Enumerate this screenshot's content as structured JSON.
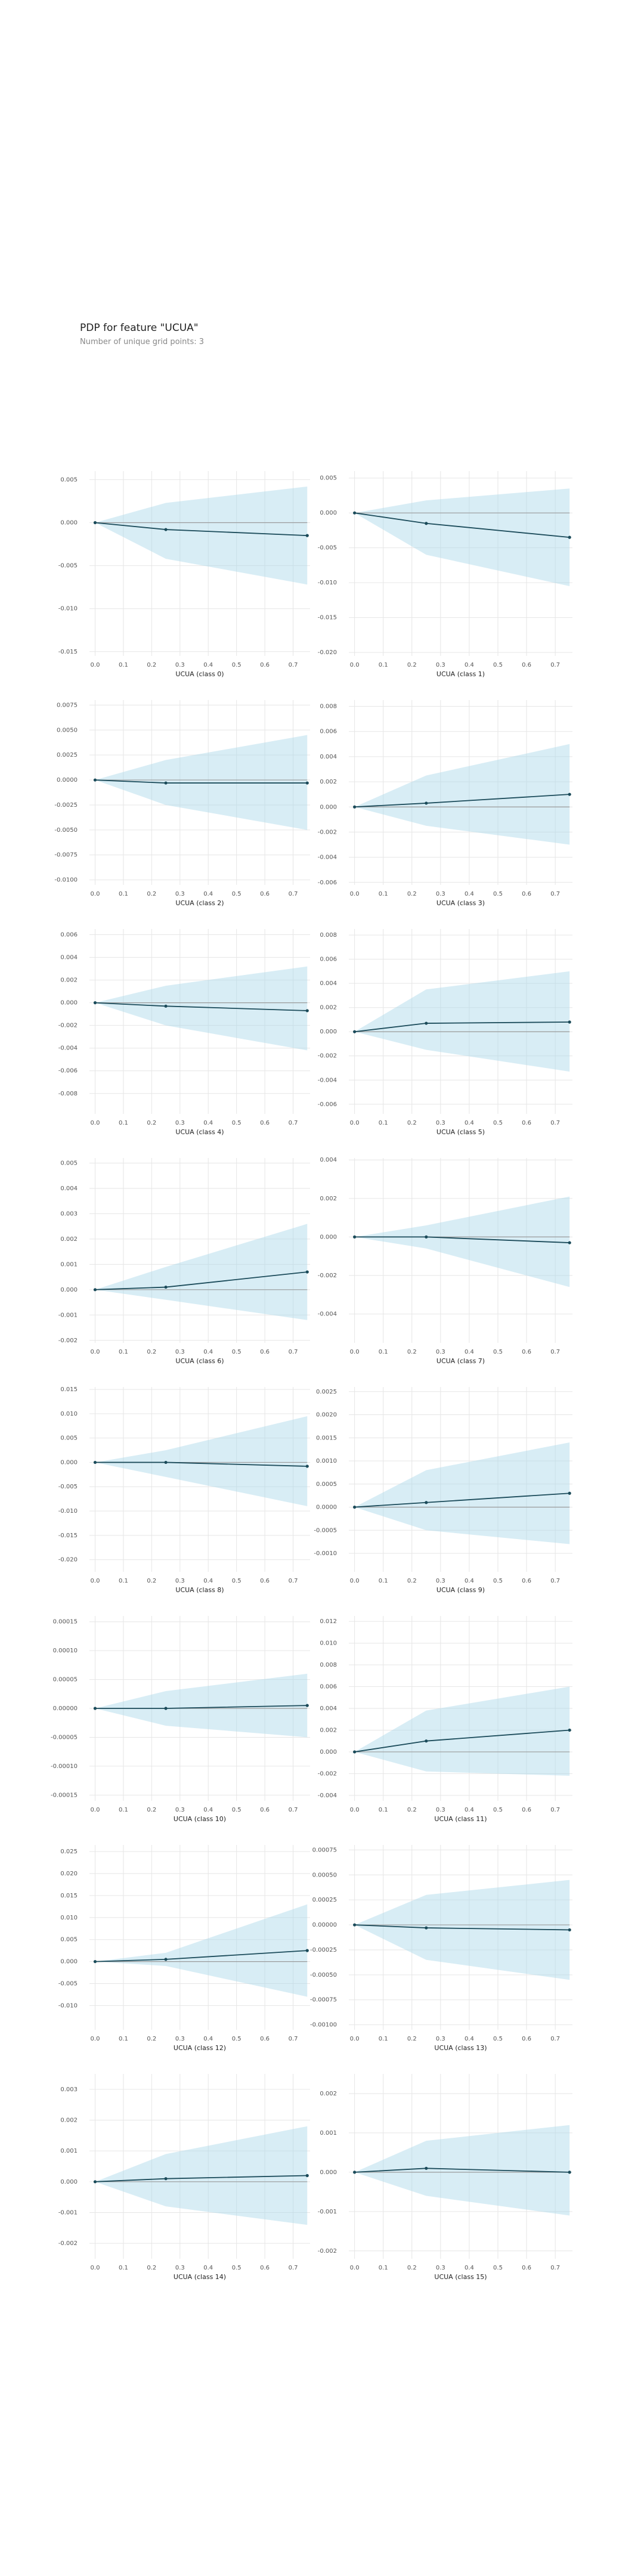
{
  "header": {
    "title": "PDP for feature \"UCUA\"",
    "subtitle": "Number of unique grid points: 3"
  },
  "style": {
    "band_color": "#a9d8e8",
    "line_color": "#1b4b5a",
    "ref_color": "#9a9a9a",
    "grid_color": "#e6e6e6"
  },
  "chart_data": [
    {
      "type": "line",
      "xlabel": "UCUA (class 0)",
      "x": [
        0,
        0.25,
        0.75
      ],
      "y": [
        0,
        -0.0008,
        -0.0015
      ],
      "lower": [
        0,
        -0.0042,
        -0.0072
      ],
      "upper": [
        0,
        0.0023,
        0.0042
      ],
      "ylim": [
        -0.0155,
        0.006
      ],
      "yticks": [
        0.005,
        0,
        -0.005,
        -0.01,
        -0.015
      ],
      "yticklabels": [
        "0.005",
        "0.000",
        "-0.005",
        "-0.010",
        "-0.015"
      ]
    },
    {
      "type": "line",
      "xlabel": "UCUA (class 1)",
      "x": [
        0,
        0.25,
        0.75
      ],
      "y": [
        0,
        -0.0015,
        -0.0035
      ],
      "lower": [
        0,
        -0.006,
        -0.0105
      ],
      "upper": [
        0,
        0.0018,
        0.0035
      ],
      "ylim": [
        -0.0205,
        0.006
      ],
      "yticks": [
        0.005,
        0,
        -0.005,
        -0.01,
        -0.015,
        -0.02
      ],
      "yticklabels": [
        "0.005",
        "0.000",
        "-0.005",
        "-0.010",
        "-0.015",
        "-0.020"
      ]
    },
    {
      "type": "line",
      "xlabel": "UCUA (class 2)",
      "x": [
        0,
        0.25,
        0.75
      ],
      "y": [
        0,
        -0.0003,
        -0.0003
      ],
      "lower": [
        0,
        -0.0025,
        -0.005
      ],
      "upper": [
        0,
        0.002,
        0.0045
      ],
      "ylim": [
        -0.0105,
        0.008
      ],
      "yticks": [
        0.0075,
        0.005,
        0.0025,
        0,
        -0.0025,
        -0.005,
        -0.0075,
        -0.01
      ],
      "yticklabels": [
        "0.0075",
        "0.0050",
        "0.0025",
        "0.0000",
        "-0.0025",
        "-0.0050",
        "-0.0075",
        "-0.0100"
      ]
    },
    {
      "type": "line",
      "xlabel": "UCUA (class 3)",
      "x": [
        0,
        0.25,
        0.75
      ],
      "y": [
        0,
        0.0003,
        0.001
      ],
      "lower": [
        0,
        -0.0015,
        -0.003
      ],
      "upper": [
        0,
        0.0025,
        0.005
      ],
      "ylim": [
        -0.0062,
        0.0085
      ],
      "yticks": [
        0.008,
        0.006,
        0.004,
        0.002,
        0,
        -0.002,
        -0.004,
        -0.006
      ],
      "yticklabels": [
        "0.008",
        "0.006",
        "0.004",
        "0.002",
        "0.000",
        "-0.002",
        "-0.004",
        "-0.006"
      ]
    },
    {
      "type": "line",
      "xlabel": "UCUA (class 4)",
      "x": [
        0,
        0.25,
        0.75
      ],
      "y": [
        0,
        -0.0003,
        -0.0007
      ],
      "lower": [
        0,
        -0.002,
        -0.0042
      ],
      "upper": [
        0,
        0.0015,
        0.0032
      ],
      "ylim": [
        -0.0098,
        0.0065
      ],
      "yticks": [
        0.006,
        0.004,
        0.002,
        0,
        -0.002,
        -0.004,
        -0.006,
        -0.008
      ],
      "yticklabels": [
        "0.006",
        "0.004",
        "0.002",
        "0.000",
        "-0.002",
        "-0.004",
        "-0.006",
        "-0.008"
      ]
    },
    {
      "type": "line",
      "xlabel": "UCUA (class 5)",
      "x": [
        0,
        0.25,
        0.75
      ],
      "y": [
        0,
        0.0007,
        0.0008
      ],
      "lower": [
        0,
        -0.0015,
        -0.0033
      ],
      "upper": [
        0,
        0.0035,
        0.005
      ],
      "ylim": [
        -0.0068,
        0.0085
      ],
      "yticks": [
        0.008,
        0.006,
        0.004,
        0.002,
        0,
        -0.002,
        -0.004,
        -0.006
      ],
      "yticklabels": [
        "0.008",
        "0.006",
        "0.004",
        "0.002",
        "0.000",
        "-0.002",
        "-0.004",
        "-0.006"
      ]
    },
    {
      "type": "line",
      "xlabel": "UCUA (class 6)",
      "x": [
        0,
        0.25,
        0.75
      ],
      "y": [
        0,
        0.0001,
        0.0007
      ],
      "lower": [
        0,
        -0.0004,
        -0.0012
      ],
      "upper": [
        0,
        0.0009,
        0.0026
      ],
      "ylim": [
        -0.0021,
        0.0052
      ],
      "yticks": [
        0.005,
        0.004,
        0.003,
        0.002,
        0.001,
        0,
        -0.001,
        -0.002
      ],
      "yticklabels": [
        "0.005",
        "0.004",
        "0.003",
        "0.002",
        "0.001",
        "0.000",
        "-0.001",
        "-0.002"
      ]
    },
    {
      "type": "line",
      "xlabel": "UCUA (class 7)",
      "x": [
        0,
        0.25,
        0.75
      ],
      "y": [
        0,
        0,
        -0.0003
      ],
      "lower": [
        0,
        -0.0006,
        -0.0026
      ],
      "upper": [
        0,
        0.0006,
        0.0021
      ],
      "ylim": [
        -0.0055,
        0.0041
      ],
      "yticks": [
        0.004,
        0.002,
        0,
        -0.002,
        -0.004
      ],
      "yticklabels": [
        "0.004",
        "0.002",
        "0.000",
        "-0.002",
        "-0.004"
      ]
    },
    {
      "type": "line",
      "xlabel": "UCUA (class 8)",
      "x": [
        0,
        0.25,
        0.75
      ],
      "y": [
        0,
        0,
        -0.0008
      ],
      "lower": [
        0,
        -0.003,
        -0.009
      ],
      "upper": [
        0,
        0.0025,
        0.0095
      ],
      "ylim": [
        -0.0225,
        0.0155
      ],
      "yticks": [
        0.015,
        0.01,
        0.005,
        0,
        -0.005,
        -0.01,
        -0.015,
        -0.02
      ],
      "yticklabels": [
        "0.015",
        "0.010",
        "0.005",
        "0.000",
        "-0.005",
        "-0.010",
        "-0.015",
        "-0.020"
      ]
    },
    {
      "type": "line",
      "xlabel": "UCUA (class 9)",
      "x": [
        0,
        0.25,
        0.75
      ],
      "y": [
        0,
        0.0001,
        0.0003
      ],
      "lower": [
        0,
        -0.0005,
        -0.0008
      ],
      "upper": [
        0,
        0.0008,
        0.0014
      ],
      "ylim": [
        -0.0014,
        0.0026
      ],
      "yticks": [
        0.0025,
        0.002,
        0.0015,
        0.001,
        0.0005,
        0,
        -0.0005,
        -0.001
      ],
      "yticklabels": [
        "0.0025",
        "0.0020",
        "0.0015",
        "0.0010",
        "0.0005",
        "0.0000",
        "-0.0005",
        "-0.0010"
      ]
    },
    {
      "type": "line",
      "xlabel": "UCUA (class 10)",
      "x": [
        0,
        0.25,
        0.75
      ],
      "y": [
        0,
        0,
        5e-06
      ],
      "lower": [
        0,
        -3e-05,
        -5e-05
      ],
      "upper": [
        0,
        3e-05,
        6e-05
      ],
      "ylim": [
        -0.00016,
        0.00016
      ],
      "yticks": [
        0.00015,
        0.0001,
        5e-05,
        0,
        -5e-05,
        -0.0001,
        -0.00015
      ],
      "yticklabels": [
        "0.00015",
        "0.00010",
        "0.00005",
        "0.00000",
        "-0.00005",
        "-0.00010",
        "-0.00015"
      ]
    },
    {
      "type": "line",
      "xlabel": "UCUA (class 11)",
      "x": [
        0,
        0.25,
        0.75
      ],
      "y": [
        0,
        0.001,
        0.002
      ],
      "lower": [
        0,
        -0.0018,
        -0.0022
      ],
      "upper": [
        0,
        0.0038,
        0.006
      ],
      "ylim": [
        -0.0045,
        0.0125
      ],
      "yticks": [
        0.012,
        0.01,
        0.008,
        0.006,
        0.004,
        0.002,
        0,
        -0.002,
        -0.004
      ],
      "yticklabels": [
        "0.012",
        "0.010",
        "0.008",
        "0.006",
        "0.004",
        "0.002",
        "0.000",
        "-0.002",
        "-0.004"
      ]
    },
    {
      "type": "line",
      "xlabel": "UCUA (class 12)",
      "x": [
        0,
        0.25,
        0.75
      ],
      "y": [
        0,
        0.0005,
        0.0025
      ],
      "lower": [
        0,
        -0.001,
        -0.008
      ],
      "upper": [
        0,
        0.002,
        0.013
      ],
      "ylim": [
        -0.0155,
        0.0265
      ],
      "yticks": [
        0.025,
        0.02,
        0.015,
        0.01,
        0.005,
        0,
        -0.005,
        -0.01
      ],
      "yticklabels": [
        "0.025",
        "0.020",
        "0.015",
        "0.010",
        "0.005",
        "0.000",
        "-0.005",
        "-0.010"
      ]
    },
    {
      "type": "line",
      "xlabel": "UCUA (class 13)",
      "x": [
        0,
        0.25,
        0.75
      ],
      "y": [
        0,
        -3e-05,
        -5e-05
      ],
      "lower": [
        0,
        -0.00035,
        -0.00055
      ],
      "upper": [
        0,
        0.0003,
        0.00045
      ],
      "ylim": [
        -0.00105,
        0.0008
      ],
      "yticks": [
        0.00075,
        0.0005,
        0.00025,
        0,
        -0.00025,
        -0.0005,
        -0.00075,
        -0.001
      ],
      "yticklabels": [
        "0.00075",
        "0.00050",
        "0.00025",
        "0.00000",
        "-0.00025",
        "-0.00050",
        "-0.00075",
        "-0.00100"
      ]
    },
    {
      "type": "line",
      "xlabel": "UCUA (class 14)",
      "x": [
        0,
        0.25,
        0.75
      ],
      "y": [
        0,
        0.0001,
        0.0002
      ],
      "lower": [
        0,
        -0.0008,
        -0.0014
      ],
      "upper": [
        0,
        0.0009,
        0.0018
      ],
      "ylim": [
        -0.0025,
        0.0035
      ],
      "yticks": [
        0.003,
        0.002,
        0.001,
        0,
        -0.001,
        -0.002
      ],
      "yticklabels": [
        "0.003",
        "0.002",
        "0.001",
        "0.000",
        "-0.001",
        "-0.002"
      ]
    },
    {
      "type": "line",
      "xlabel": "UCUA (class 15)",
      "x": [
        0,
        0.25,
        0.75
      ],
      "y": [
        0,
        0.0001,
        0
      ],
      "lower": [
        0,
        -0.0006,
        -0.0011
      ],
      "upper": [
        0,
        0.0008,
        0.0012
      ],
      "ylim": [
        -0.0022,
        0.0025
      ],
      "yticks": [
        0.002,
        0.001,
        0,
        -0.001,
        -0.002
      ],
      "yticklabels": [
        "0.002",
        "0.001",
        "0.000",
        "-0.001",
        "-0.002"
      ]
    }
  ],
  "xaxis": {
    "xlim": [
      -0.02,
      0.76
    ],
    "xticks": [
      0,
      0.1,
      0.2,
      0.3,
      0.4,
      0.5,
      0.6,
      0.7
    ],
    "xticklabels": [
      "0.0",
      "0.1",
      "0.2",
      "0.3",
      "0.4",
      "0.5",
      "0.6",
      "0.7"
    ]
  }
}
